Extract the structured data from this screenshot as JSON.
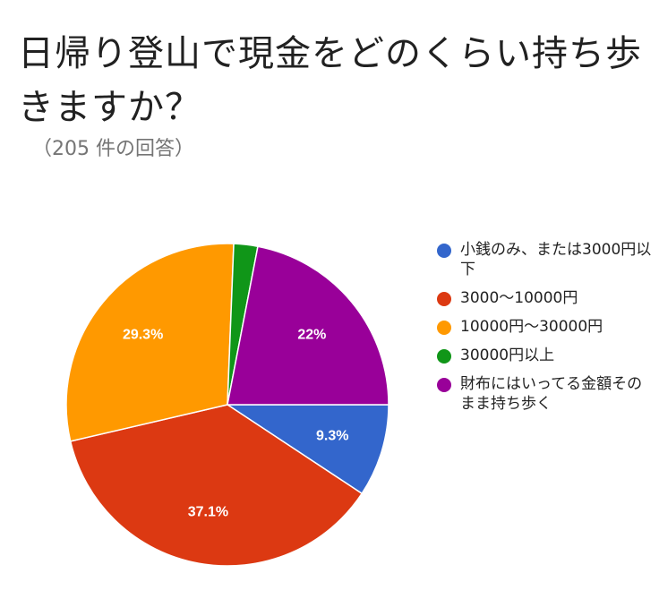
{
  "title": "日帰り登山で現金をどのくらい持ち歩きますか？",
  "subtitle": "（205 件の回答）",
  "chart_data": {
    "type": "pie",
    "title": "日帰り登山で現金をどのくらい持ち歩きますか？",
    "subtitle": "（205 件の回答）",
    "legend_position": "right",
    "slices": [
      {
        "name": "小銭のみ、または3000円以下",
        "value": 9.3,
        "label": "9.3%",
        "color": "#3366cc"
      },
      {
        "name": "3000〜10000円",
        "value": 37.1,
        "label": "37.1%",
        "color": "#dc3912"
      },
      {
        "name": "10000円〜30000円",
        "value": 29.3,
        "label": "29.3%",
        "color": "#ff9900"
      },
      {
        "name": "30000円以上",
        "value": 2.4,
        "label": "",
        "color": "#109618"
      },
      {
        "name": "財布にはいってる金額そのまま持ち歩く",
        "value": 22,
        "label": "22%",
        "color": "#990099"
      }
    ]
  }
}
